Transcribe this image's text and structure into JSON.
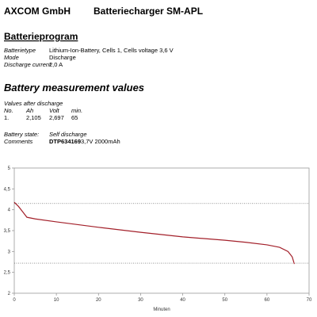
{
  "header": {
    "company": "AXCOM GmbH",
    "product": "Batteriecharger SM-APL"
  },
  "program": {
    "title": "Batterieprogram",
    "rows": [
      [
        "Batterietype",
        "Lithium-Ion-Battery, Cells 1, Cells voltage 3,6 V"
      ],
      [
        "Mode",
        "Discharge"
      ],
      [
        "Discharge current",
        "2,0 A"
      ]
    ]
  },
  "measurement": {
    "title": "Battery measurement values",
    "subtitle": "Values after discharge",
    "table": {
      "header": [
        "No.",
        "Ah",
        "Volt",
        "min."
      ],
      "rows": [
        [
          "1.",
          "2,105",
          "2,697",
          "65"
        ]
      ]
    },
    "state_label": "Battery state:",
    "state_value": "Self discharge",
    "comments_label": "Comments",
    "comments_id": "DTP634169",
    "comments_text": "3,7V 2000mAh"
  },
  "chart_data": {
    "type": "line",
    "xlabel": "Minuten",
    "x": [
      0,
      1,
      2,
      3,
      5,
      10,
      20,
      30,
      40,
      50,
      55,
      60,
      63,
      65,
      66,
      66.5
    ],
    "series": [
      {
        "color": "#a3202a",
        "values": [
          4.18,
          4.08,
          3.95,
          3.82,
          3.78,
          3.71,
          3.58,
          3.46,
          3.35,
          3.27,
          3.22,
          3.16,
          3.1,
          3.0,
          2.87,
          2.7
        ]
      }
    ],
    "xlim": [
      0,
      70
    ],
    "xticks": [
      0,
      10,
      20,
      30,
      40,
      50,
      60,
      70
    ],
    "ylim": [
      2,
      5
    ],
    "yticks": [
      2,
      {
        "value": 2.5,
        "label": "2,5"
      },
      3,
      {
        "value": 3.5,
        "label": "3,5"
      },
      4,
      {
        "value": 4.5,
        "label": "4,5"
      },
      5
    ],
    "hlines": [
      4.15,
      2.72
    ]
  }
}
